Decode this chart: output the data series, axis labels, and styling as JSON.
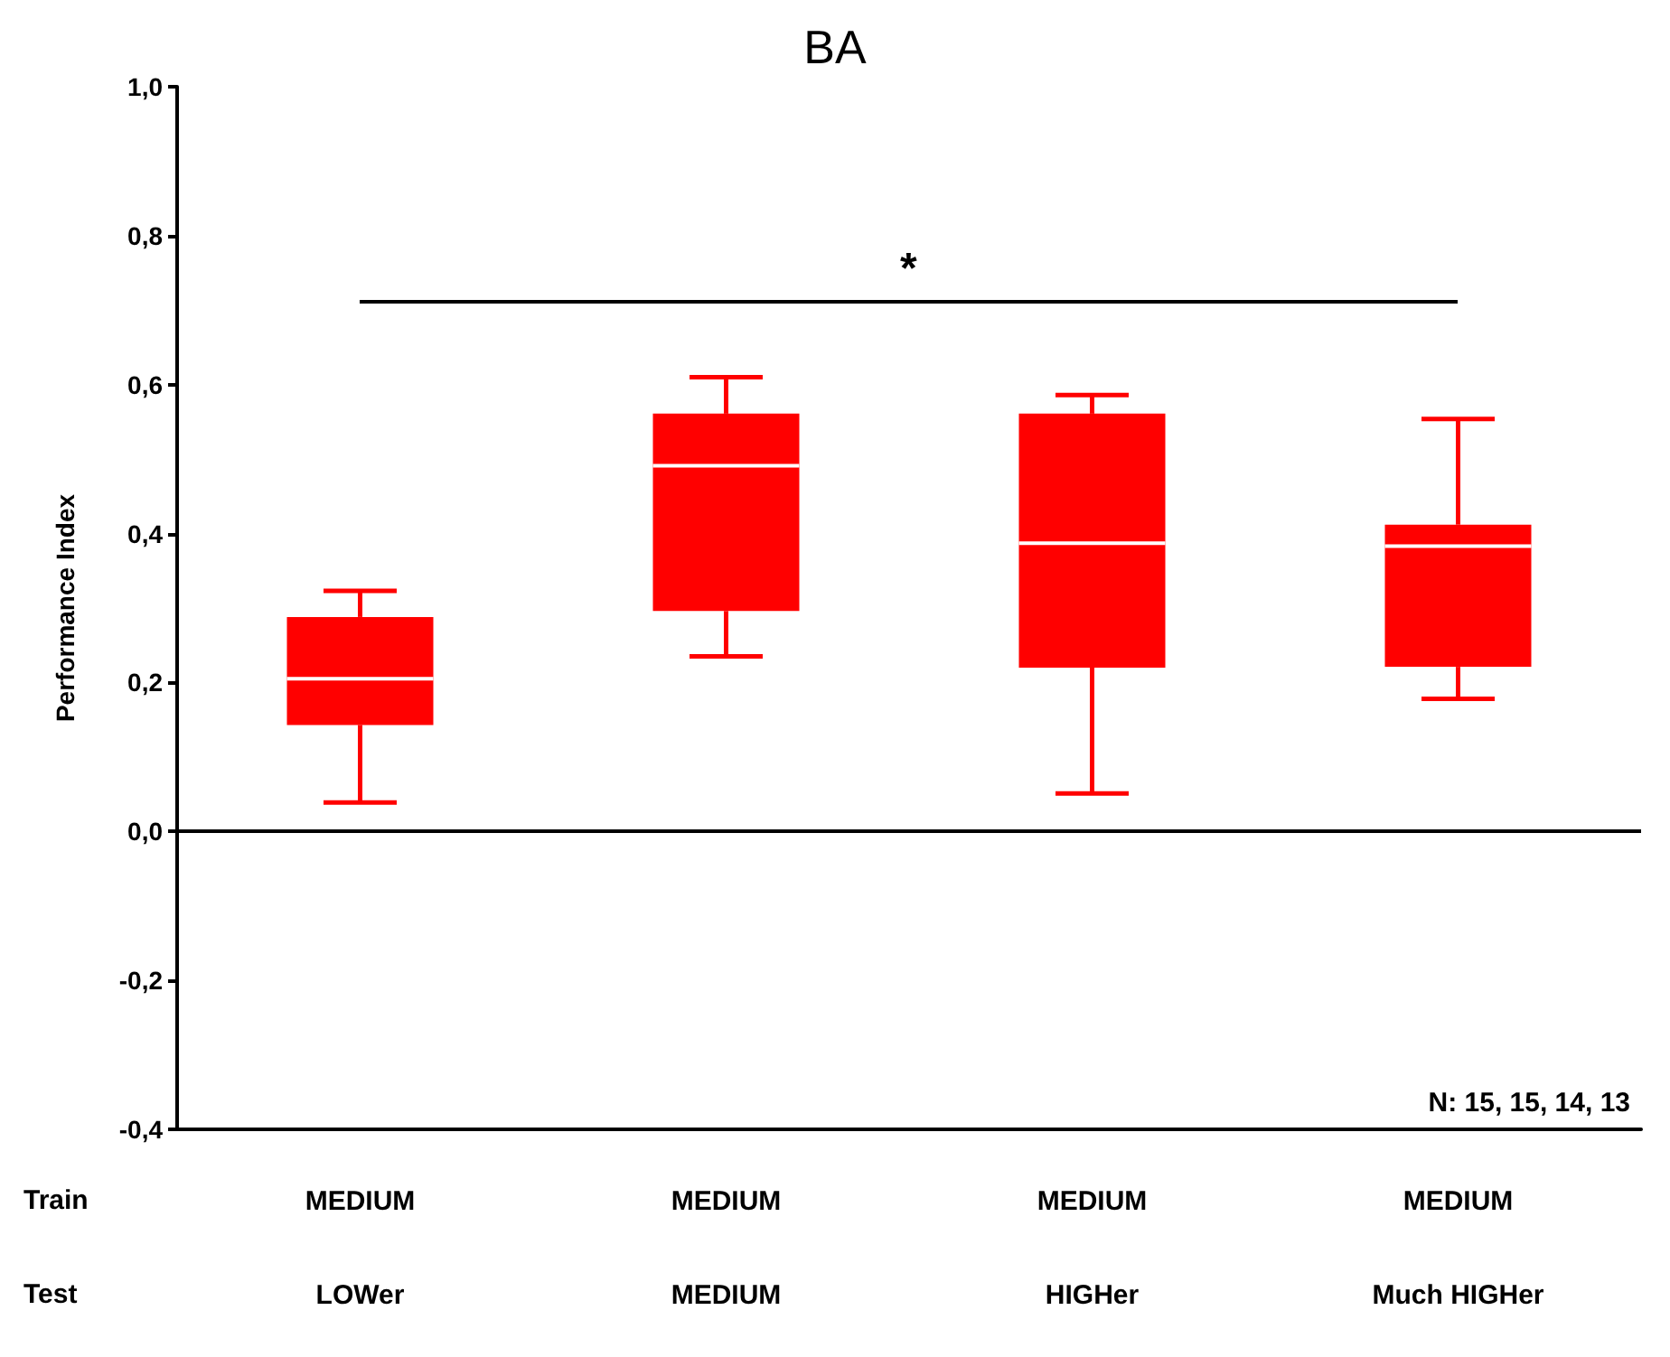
{
  "chart_data": {
    "type": "box",
    "title": "BA",
    "ylabel": "Performance Index",
    "categories": [
      "MEDIUM\nLOWer",
      "MEDIUM\nMEDIUM",
      "MEDIUM\nHIGHer",
      "MEDIUM\nMuch HIGHer"
    ],
    "series": [
      {
        "color": "#ff0000",
        "boxes": [
          {
            "low": 0.039,
            "q1": 0.143,
            "median": 0.205,
            "q3": 0.288,
            "high": 0.323
          },
          {
            "low": 0.235,
            "q1": 0.296,
            "median": 0.491,
            "q3": 0.561,
            "high": 0.61
          },
          {
            "low": 0.051,
            "q1": 0.22,
            "median": 0.387,
            "q3": 0.561,
            "high": 0.586
          },
          {
            "low": 0.178,
            "q1": 0.221,
            "median": 0.383,
            "q3": 0.412,
            "high": 0.554
          }
        ]
      }
    ],
    "ylim": [
      -0.4,
      1.0
    ],
    "yticks": [
      {
        "value": -0.4,
        "label": "-0,4"
      },
      {
        "value": -0.2,
        "label": "-0,2"
      },
      {
        "value": 0,
        "label": "0,0"
      },
      {
        "value": 0.2,
        "label": "0,2"
      },
      {
        "value": 0.4,
        "label": "0,4"
      },
      {
        "value": 0.6,
        "label": "0,6"
      },
      {
        "value": 0.8,
        "label": "0,8"
      },
      {
        "value": 1.0,
        "label": "1,0"
      }
    ],
    "ref_lines": [
      {
        "axis": "y",
        "value": 0,
        "color": "#000000"
      }
    ],
    "grid": false,
    "annotations": [
      "*",
      "N: 15, 15, 14, 13",
      "Train",
      "Test"
    ]
  }
}
